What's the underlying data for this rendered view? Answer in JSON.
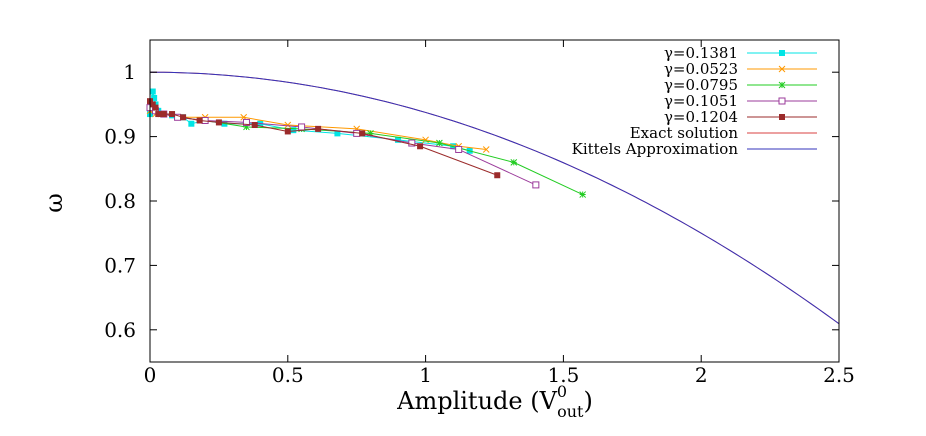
{
  "chart_data": {
    "type": "line",
    "title": "",
    "xlabel": {
      "main": "Amplitude (V",
      "sup": "0",
      "sub": "out",
      "close": ")"
    },
    "ylabel": "ω",
    "xlim": [
      0,
      2.5
    ],
    "ylim": [
      0.55,
      1.05
    ],
    "xticks": [
      0,
      0.5,
      1,
      1.5,
      2,
      2.5
    ],
    "xtick_labels": [
      "0",
      "0.5",
      "1",
      "1.5",
      "2",
      "2.5"
    ],
    "yticks": [
      0.6,
      0.7,
      0.8,
      0.9,
      1
    ],
    "ytick_labels": [
      "0.6",
      "0.7",
      "0.8",
      "0.9",
      "1"
    ],
    "grid": false,
    "legend_position": "top-right",
    "series": [
      {
        "name": "γ=0.1381",
        "color": "#00e5e5",
        "marker": "filled-square",
        "x": [
          0.0,
          0.01,
          0.015,
          0.02,
          0.03,
          0.05,
          0.08,
          0.12,
          0.15,
          0.2,
          0.27,
          0.4,
          0.52,
          0.68,
          0.9,
          1.1,
          1.16
        ],
        "y": [
          0.935,
          0.97,
          0.96,
          0.95,
          0.94,
          0.935,
          0.933,
          0.93,
          0.92,
          0.925,
          0.92,
          0.92,
          0.91,
          0.905,
          0.895,
          0.885,
          0.878
        ]
      },
      {
        "name": "γ=0.0523",
        "color": "#ff9900",
        "marker": "x",
        "x": [
          0.0,
          0.02,
          0.05,
          0.1,
          0.2,
          0.34,
          0.5,
          0.75,
          1.0,
          1.12,
          1.22
        ],
        "y": [
          0.94,
          0.935,
          0.935,
          0.93,
          0.93,
          0.93,
          0.918,
          0.912,
          0.895,
          0.885,
          0.88
        ]
      },
      {
        "name": "γ=0.0795",
        "color": "#22cc22",
        "marker": "star",
        "x": [
          0.0,
          0.02,
          0.05,
          0.1,
          0.2,
          0.35,
          0.55,
          0.8,
          1.05,
          1.32,
          1.57
        ],
        "y": [
          0.945,
          0.94,
          0.935,
          0.93,
          0.925,
          0.915,
          0.912,
          0.905,
          0.89,
          0.86,
          0.81
        ]
      },
      {
        "name": "γ=0.1051",
        "color": "#9b3b9b",
        "marker": "open-square",
        "x": [
          0.0,
          0.02,
          0.05,
          0.1,
          0.2,
          0.35,
          0.55,
          0.75,
          0.95,
          1.12,
          1.4
        ],
        "y": [
          0.945,
          0.94,
          0.935,
          0.93,
          0.925,
          0.922,
          0.915,
          0.905,
          0.89,
          0.88,
          0.825
        ]
      },
      {
        "name": "γ=0.1204",
        "color": "#9b2b2b",
        "marker": "filled-square",
        "x": [
          0.0,
          0.01,
          0.02,
          0.03,
          0.05,
          0.08,
          0.12,
          0.18,
          0.25,
          0.38,
          0.5,
          0.61,
          0.77,
          0.98,
          1.26
        ],
        "y": [
          0.955,
          0.95,
          0.945,
          0.935,
          0.935,
          0.935,
          0.93,
          0.925,
          0.922,
          0.918,
          0.908,
          0.912,
          0.905,
          0.885,
          0.84
        ]
      },
      {
        "name": "Exact solution",
        "color": "#d94040",
        "marker": "none",
        "x": [
          0,
          0.25,
          0.5,
          0.75,
          1.0,
          1.25,
          1.5,
          1.75,
          2.0,
          2.25,
          2.5
        ],
        "y": [
          1.0,
          0.9961,
          0.9844,
          0.9648,
          0.9375,
          0.9023,
          0.8594,
          0.8086,
          0.75,
          0.6836,
          0.6094
        ]
      },
      {
        "name": "Kittels Approximation",
        "color": "#3333bb",
        "marker": "none",
        "x": [
          0,
          0.25,
          0.5,
          0.75,
          1.0,
          1.25,
          1.5,
          1.75,
          2.0,
          2.25,
          2.5
        ],
        "y": [
          1.0,
          0.9961,
          0.9844,
          0.9648,
          0.9375,
          0.9023,
          0.8594,
          0.8086,
          0.75,
          0.6836,
          0.6094
        ]
      }
    ]
  }
}
